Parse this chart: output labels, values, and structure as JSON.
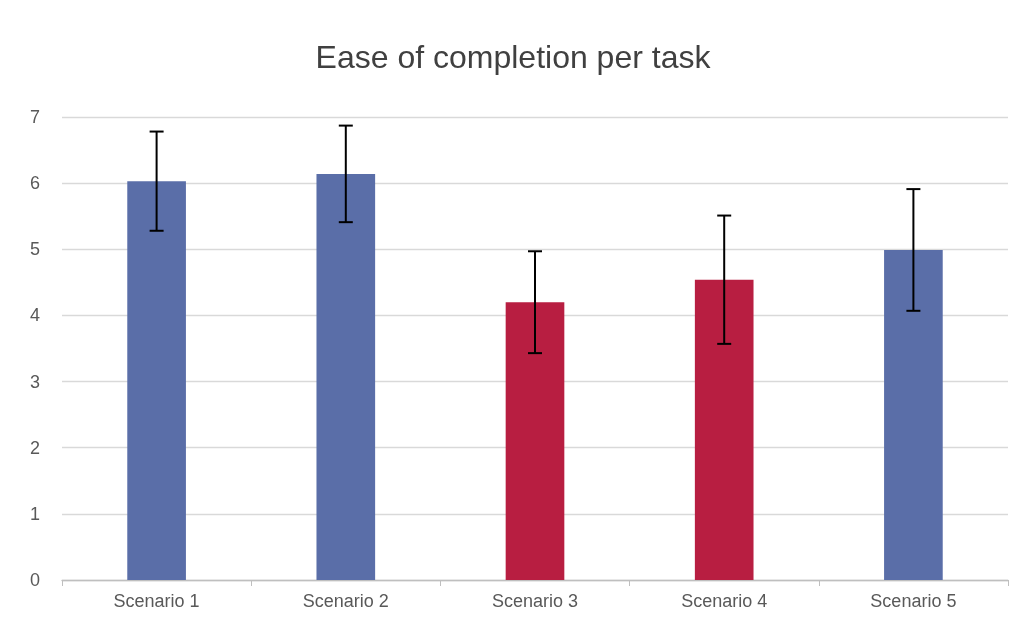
{
  "chart_data": {
    "type": "bar",
    "title": "Ease of completion per task",
    "categories": [
      "Scenario 1",
      "Scenario 2",
      "Scenario 3",
      "Scenario 4",
      "Scenario 5"
    ],
    "values": [
      6.03,
      6.14,
      4.2,
      4.54,
      4.99
    ],
    "colors": [
      "#5a6ea8",
      "#5a6ea8",
      "#b81e41",
      "#b81e41",
      "#5a6ea8"
    ],
    "errors": [
      0.75,
      0.73,
      0.77,
      0.97,
      0.92
    ],
    "ylim": [
      0,
      7
    ],
    "yticks": [
      0,
      1,
      2,
      3,
      4,
      5,
      6,
      7
    ],
    "grid": "y"
  }
}
